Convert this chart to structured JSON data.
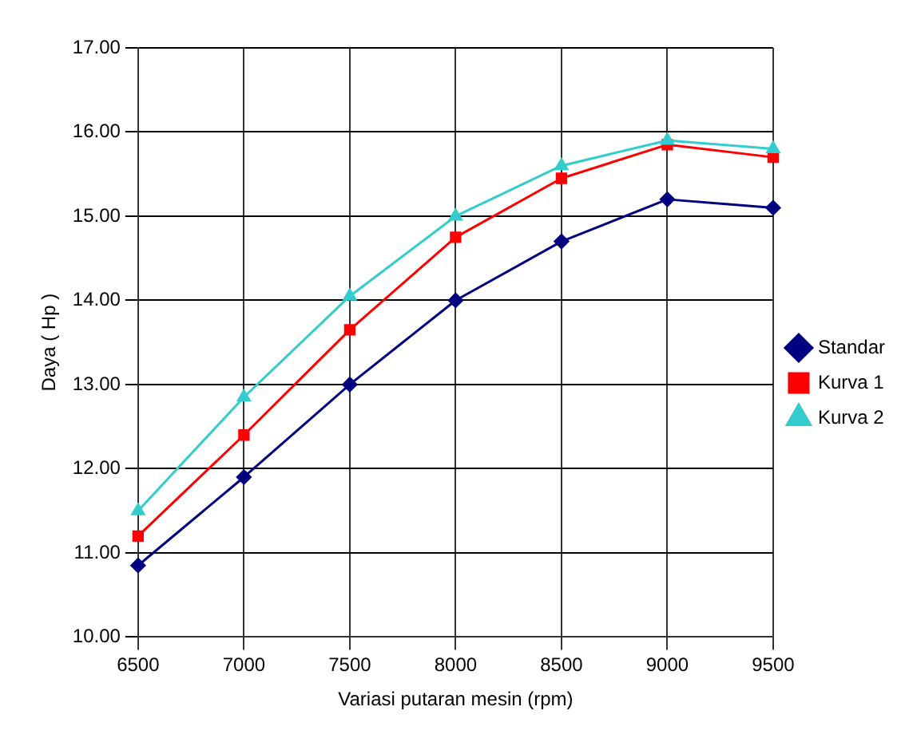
{
  "chart_data": {
    "type": "line",
    "xlabel": "Variasi putaran mesin (rpm)",
    "ylabel": "Daya ( Hp )",
    "categories": [
      "6500",
      "7000",
      "7500",
      "8000",
      "8500",
      "9000",
      "9500"
    ],
    "series": [
      {
        "name": "Standar",
        "color": "#000080",
        "marker": "diamond",
        "values": [
          10.85,
          11.9,
          13.0,
          14.0,
          14.7,
          15.2,
          15.1
        ]
      },
      {
        "name": "Kurva 1",
        "color": "#ff0000",
        "marker": "square",
        "values": [
          11.2,
          12.4,
          13.65,
          14.75,
          15.45,
          15.85,
          15.7
        ]
      },
      {
        "name": "Kurva 2",
        "color": "#33cccc",
        "marker": "triangle",
        "values": [
          11.5,
          12.85,
          14.05,
          15.0,
          15.6,
          15.9,
          15.8
        ]
      }
    ],
    "ylim": [
      10,
      17
    ],
    "yticks": [
      {
        "value": 10,
        "label": "10.00"
      },
      {
        "value": 11,
        "label": "11.00"
      },
      {
        "value": 12,
        "label": "12.00"
      },
      {
        "value": 13,
        "label": "13.00"
      },
      {
        "value": 14,
        "label": "14.00"
      },
      {
        "value": 15,
        "label": "15.00"
      },
      {
        "value": 16,
        "label": "16.00"
      },
      {
        "value": 17,
        "label": "17.00"
      }
    ],
    "grid": true,
    "legend": "right"
  }
}
